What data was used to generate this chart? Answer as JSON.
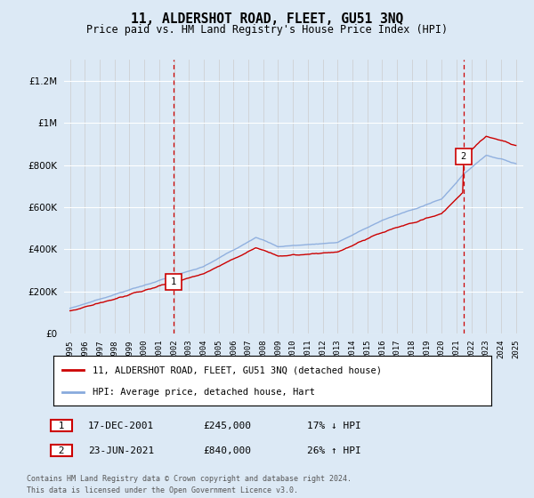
{
  "title": "11, ALDERSHOT ROAD, FLEET, GU51 3NQ",
  "subtitle": "Price paid vs. HM Land Registry's House Price Index (HPI)",
  "background_color": "#dce9f5",
  "plot_bg_color": "#dce9f5",
  "ylim": [
    0,
    1300000
  ],
  "yticks": [
    0,
    200000,
    400000,
    600000,
    800000,
    1000000,
    1200000
  ],
  "year_start": 1995,
  "year_end": 2025,
  "sale1_year": 2001.96,
  "sale1_price": 245000,
  "sale1_label": "1",
  "sale2_year": 2021.47,
  "sale2_price": 840000,
  "sale2_label": "2",
  "legend_property": "11, ALDERSHOT ROAD, FLEET, GU51 3NQ (detached house)",
  "legend_hpi": "HPI: Average price, detached house, Hart",
  "annotation1_date": "17-DEC-2001",
  "annotation1_price": "£245,000",
  "annotation1_hpi": "17% ↓ HPI",
  "annotation2_date": "23-JUN-2021",
  "annotation2_price": "£840,000",
  "annotation2_hpi": "26% ↑ HPI",
  "footnote1": "Contains HM Land Registry data © Crown copyright and database right 2024.",
  "footnote2": "This data is licensed under the Open Government Licence v3.0.",
  "property_line_color": "#cc0000",
  "hpi_line_color": "#88aadd",
  "sale_marker_color": "#cc0000",
  "vline_color": "#cc0000"
}
